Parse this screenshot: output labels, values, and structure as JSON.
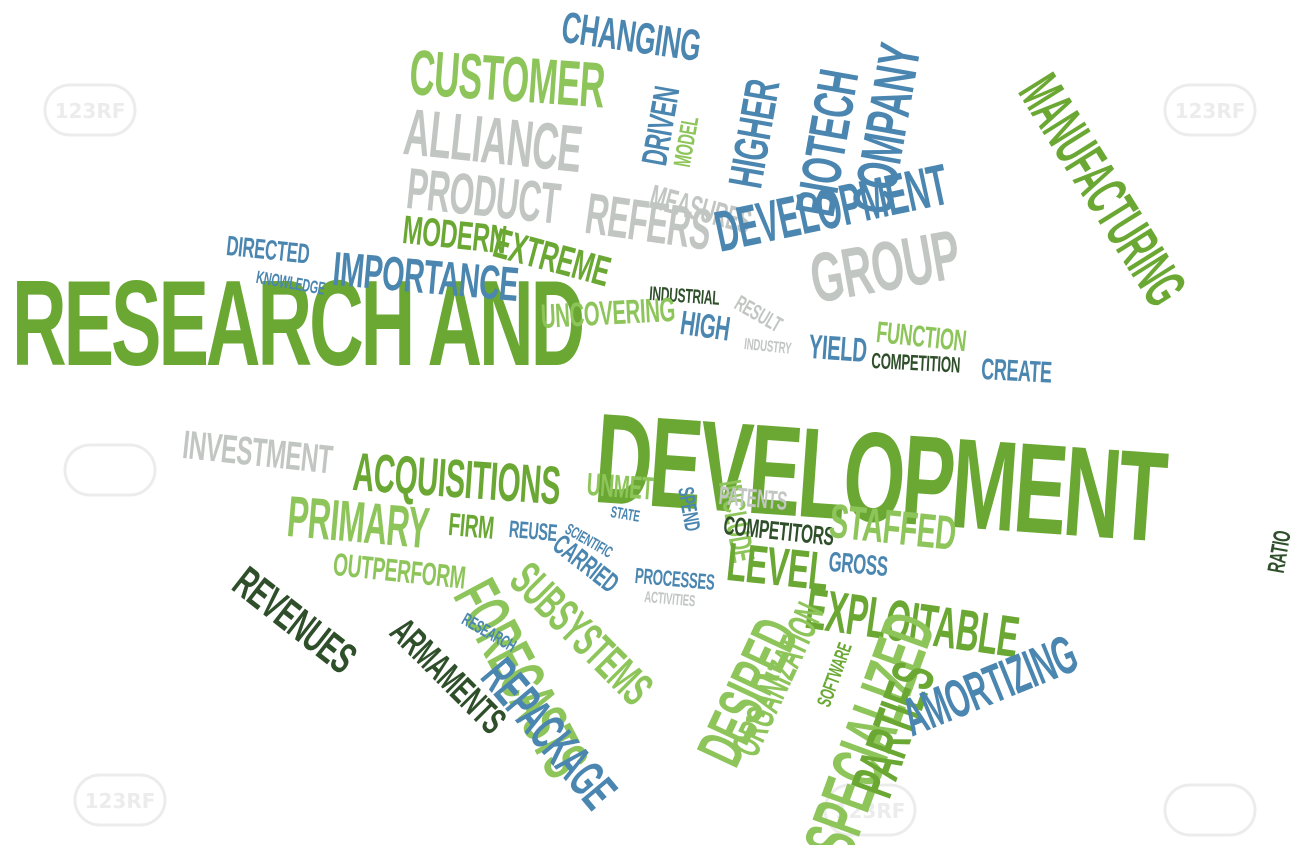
{
  "title": "RESEARCH AND DEVELOPMENT",
  "colors": {
    "green": "#6aa833",
    "light_green": "#8ec55a",
    "blue": "#4a86b0",
    "grey": "#c2c6c3",
    "dark": "#2f4f2b"
  },
  "watermark_text": "123RF",
  "words": {
    "research_and": "RESEARCH AND",
    "development_main": "DEVELOPMENT",
    "changing": "CHANGING",
    "customer": "CUSTOMER",
    "alliance": "ALLIANCE",
    "product": "PRODUCT",
    "refers": "REFERS",
    "driven": "DRIVEN",
    "model": "MODEL",
    "measures": "MEASURES",
    "higher": "HIGHER",
    "biotech": "BIOTECH",
    "company": "COMPANY",
    "manufacturing": "MANUFACTURING",
    "modern": "MODERN",
    "extreme": "EXTREME",
    "development_small": "DEVELOPMENT",
    "group": "GROUP",
    "directed": "DIRECTED",
    "knowledge": "KNOWLEDGE",
    "importance": "IMPORTANCE",
    "industrial": "INDUSTRIAL",
    "result": "RESULT",
    "uncovering": "UNCOVERING",
    "high": "HIGH",
    "industry": "INDUSTRY",
    "yield": "YIELD",
    "function": "FUNCTION",
    "competition": "COMPETITION",
    "create": "CREATE",
    "investment": "INVESTMENT",
    "acquisitions": "ACQUISITIONS",
    "unmet": "UNMET",
    "state": "STATE",
    "spend": "SPEND",
    "include": "INCLUDE",
    "patents": "PATENTS",
    "competitors": "COMPETITORS",
    "staffed": "STAFFED",
    "ratio": "RATIO",
    "primary": "PRIMARY",
    "firm": "FIRM",
    "reuse": "REUSE",
    "scientific": "SCIENTIFIC",
    "carried": "CARRIED",
    "level": "LEVEL",
    "gross": "GROSS",
    "outperform": "OUTPERFORM",
    "subsystems": "SUBSYSTEMS",
    "processes": "PROCESSES",
    "activities": "ACTIVITIES",
    "exploitable": "EXPLOITABLE",
    "revenues": "REVENUES",
    "forecasts": "FORECASTS",
    "research_small": "RESEARCH",
    "armaments": "ARMAMENTS",
    "repackage": "REPACKAGE",
    "desired": "DESIRED",
    "organization": "ORGANIZATION",
    "specialized": "SPECIALIZED",
    "software": "SOFTWARE",
    "parties": "PARTIES",
    "amortizing": "AMORTIZING"
  }
}
